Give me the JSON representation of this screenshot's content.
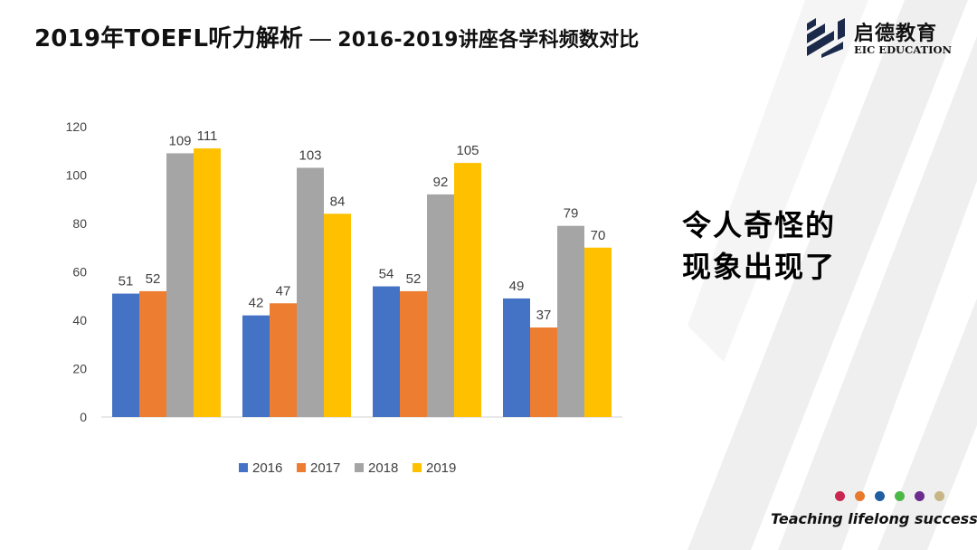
{
  "header": {
    "title_main": "2019年TOEFL听力解析",
    "title_sep": "—",
    "title_sub": "2016-2019讲座各学科频数对比"
  },
  "logo": {
    "name": "启德教育",
    "en": "EIC EDUCATION",
    "icon": "eic-logo-icon"
  },
  "side_text": [
    "令人奇怪的",
    "现象出现了"
  ],
  "footer": {
    "slogan": "Teaching lifelong success",
    "dot_colors": [
      "#c8274f",
      "#e97a2c",
      "#1f5ea0",
      "#4cb848",
      "#6a2c8e",
      "#c7b585"
    ]
  },
  "chart_data": {
    "type": "bar",
    "categories": [
      "",
      "",
      "",
      ""
    ],
    "series": [
      {
        "name": "2016",
        "color": "#4472c4",
        "values": [
          51,
          42,
          54,
          49
        ]
      },
      {
        "name": "2017",
        "color": "#ed7d31",
        "values": [
          52,
          47,
          52,
          37
        ]
      },
      {
        "name": "2018",
        "color": "#a5a5a5",
        "values": [
          109,
          103,
          92,
          79
        ]
      },
      {
        "name": "2019",
        "color": "#ffc000",
        "values": [
          111,
          84,
          105,
          70
        ]
      }
    ],
    "ylim": [
      0,
      120
    ],
    "yticks": [
      "0",
      "20",
      "40",
      "60",
      "80",
      "100",
      "120"
    ],
    "grid": false,
    "legend": "bottom",
    "data_labels": true
  }
}
